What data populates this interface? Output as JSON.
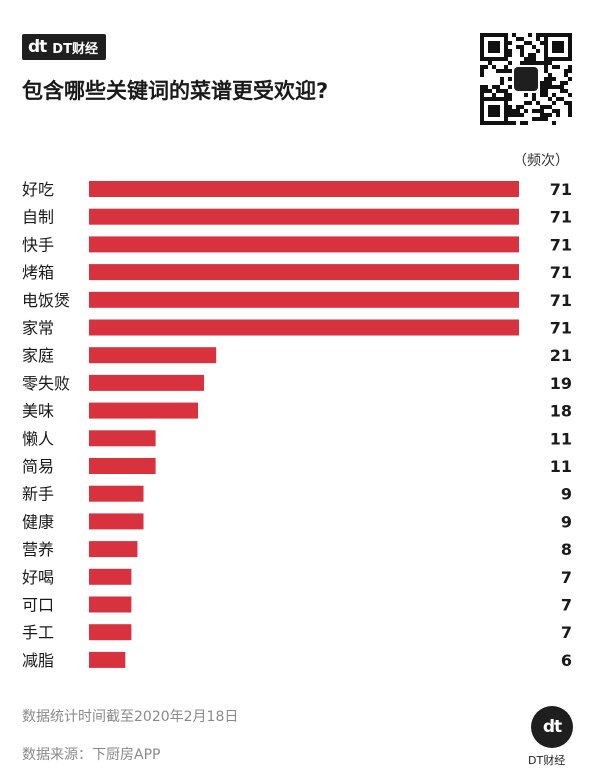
{
  "brand": {
    "logo_text": "dt",
    "name": "DT财经"
  },
  "header": {
    "title": "包含哪些关键词的菜谱更受欢迎?"
  },
  "chart_data": {
    "type": "bar",
    "orientation": "horizontal",
    "title": "包含哪些关键词的菜谱更受欢迎?",
    "unit": "（频次）",
    "categories": [
      "好吃",
      "自制",
      "快手",
      "烤箱",
      "电饭煲",
      "家常",
      "家庭",
      "零失败",
      "美味",
      "懒人",
      "简易",
      "新手",
      "健康",
      "营养",
      "好喝",
      "可口",
      "手工",
      "减脂"
    ],
    "values": [
      71,
      71,
      71,
      71,
      71,
      71,
      21,
      19,
      18,
      11,
      11,
      9,
      9,
      8,
      7,
      7,
      7,
      6
    ],
    "xlim": [
      0,
      71
    ],
    "bar_color": "#d8323f",
    "grid": false
  },
  "footer": {
    "note": "数据统计时间截至2020年2月18日",
    "source": "数据来源：下厨房APP",
    "logo_text": "dt",
    "brand_name": "DT财经"
  },
  "icons": {
    "qr": "qr-code-icon"
  }
}
